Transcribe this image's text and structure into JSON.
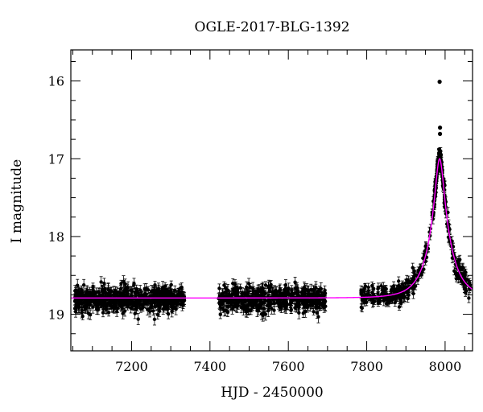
{
  "chart_data": {
    "type": "scatter",
    "title": "OGLE-2017-BLG-1392",
    "xlabel": "HJD - 2450000",
    "ylabel": "I magnitude",
    "xlim": [
      7045,
      8070
    ],
    "ylim": [
      19.47,
      15.6
    ],
    "y_inverted": true,
    "grid": false,
    "legend": "none",
    "x_major_ticks": [
      7200,
      7400,
      7600,
      7800,
      8000
    ],
    "x_minor_step": 50,
    "y_major_ticks": [
      16,
      17,
      18,
      19
    ],
    "y_minor_step": 0.25,
    "x_tick_labels": [
      "7200",
      "7400",
      "7600",
      "7800",
      "8000"
    ],
    "y_tick_labels": [
      "16",
      "17",
      "18",
      "19"
    ],
    "baseline_mag": 18.79,
    "model_peak": {
      "t0": 7986,
      "mag": 17.0
    },
    "data_seasons": [
      {
        "start": 7055,
        "end": 7335,
        "mag": 18.8,
        "scatter": 0.08,
        "count": 560,
        "error": 0.06
      },
      {
        "start": 7420,
        "end": 7695,
        "mag": 18.8,
        "scatter": 0.08,
        "count": 480,
        "error": 0.06
      },
      {
        "start": 7785,
        "end": 8065,
        "mag": 18.78,
        "scatter": 0.07,
        "count": 470,
        "error": 0.05
      }
    ],
    "highlight_points": [
      {
        "x": 7986,
        "y": 16.01
      },
      {
        "x": 7987,
        "y": 16.6
      },
      {
        "x": 7987,
        "y": 16.68
      },
      {
        "x": 7985,
        "y": 16.88
      },
      {
        "x": 7989,
        "y": 16.95
      }
    ],
    "series": [
      {
        "type": "points",
        "color": "#000000"
      },
      {
        "type": "model-curve",
        "color": "#ff00ff"
      }
    ]
  }
}
